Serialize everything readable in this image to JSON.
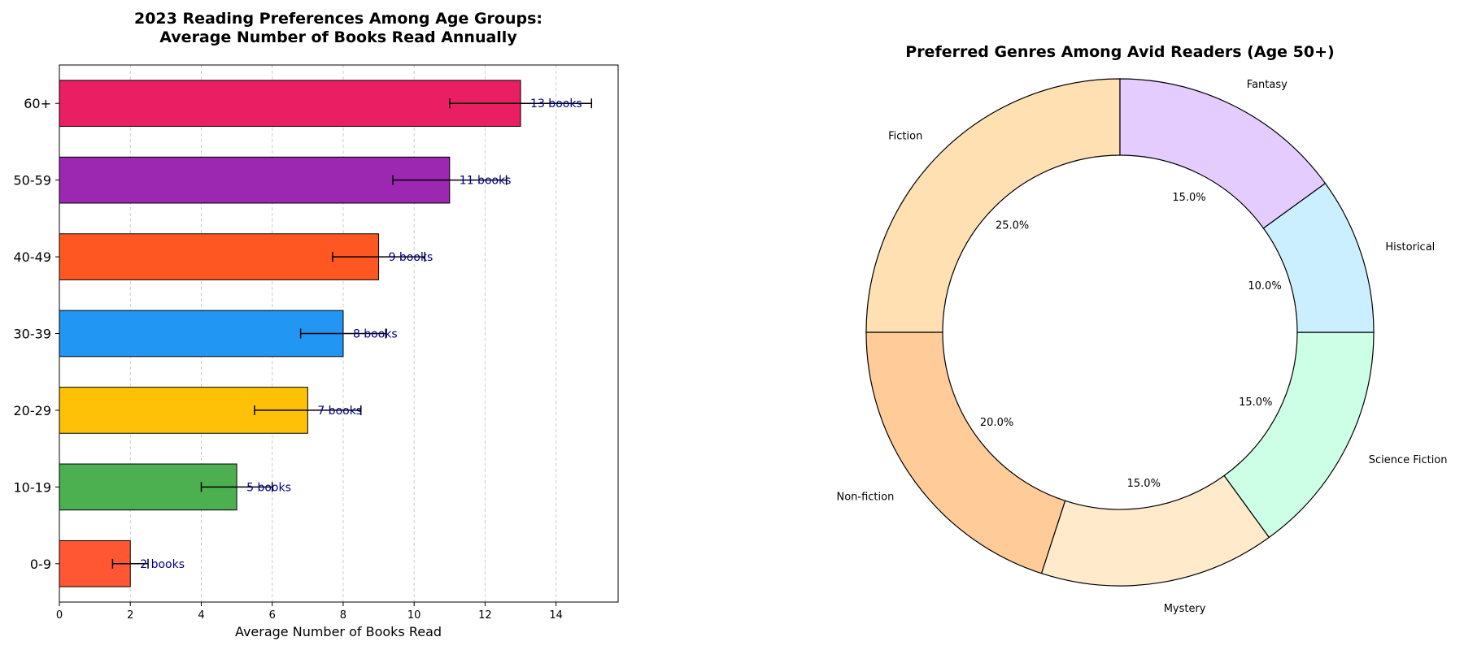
{
  "chart_data": [
    {
      "type": "bar",
      "orientation": "horizontal",
      "title_line1": "2023 Reading Preferences Among Age Groups:",
      "title_line2": "Average Number of Books Read Annually",
      "xlabel": "Average Number of Books Read",
      "ylabel": "",
      "categories": [
        "0-9",
        "10-19",
        "20-29",
        "30-39",
        "40-49",
        "50-59",
        "60+"
      ],
      "values": [
        2,
        5,
        7,
        8,
        9,
        11,
        13
      ],
      "error": [
        0.5,
        1,
        1.5,
        1.2,
        1.3,
        1.6,
        2
      ],
      "data_labels": [
        "2 books",
        "5 books",
        "7 books",
        "8 books",
        "9 books",
        "11 books",
        "13 books"
      ],
      "colors": [
        "#FF5733",
        "#4CAF50",
        "#FFC107",
        "#2196F3",
        "#FF5722",
        "#9C27B0",
        "#E91E63"
      ],
      "xlim": [
        0,
        15.75
      ],
      "xticks": [
        0,
        2,
        4,
        6,
        8,
        10,
        12,
        14
      ],
      "grid": "vertical dashed"
    },
    {
      "type": "pie",
      "style": "donut",
      "title": "Preferred Genres Among Avid Readers (Age 50+)",
      "labels": [
        "Fiction",
        "Non-fiction",
        "Mystery",
        "Science Fiction",
        "Historical",
        "Fantasy"
      ],
      "values": [
        25.0,
        20.0,
        15.0,
        15.0,
        10.0,
        15.0
      ],
      "pct_labels": [
        "25.0%",
        "20.0%",
        "15.0%",
        "15.0%",
        "10.0%",
        "15.0%"
      ],
      "colors": [
        "#FFE0B2",
        "#FFCC99",
        "#FFEBCC",
        "#CCFFE5",
        "#CCEFFF",
        "#E5CCFF"
      ],
      "start_angle": 90,
      "direction": "counterclockwise"
    }
  ]
}
